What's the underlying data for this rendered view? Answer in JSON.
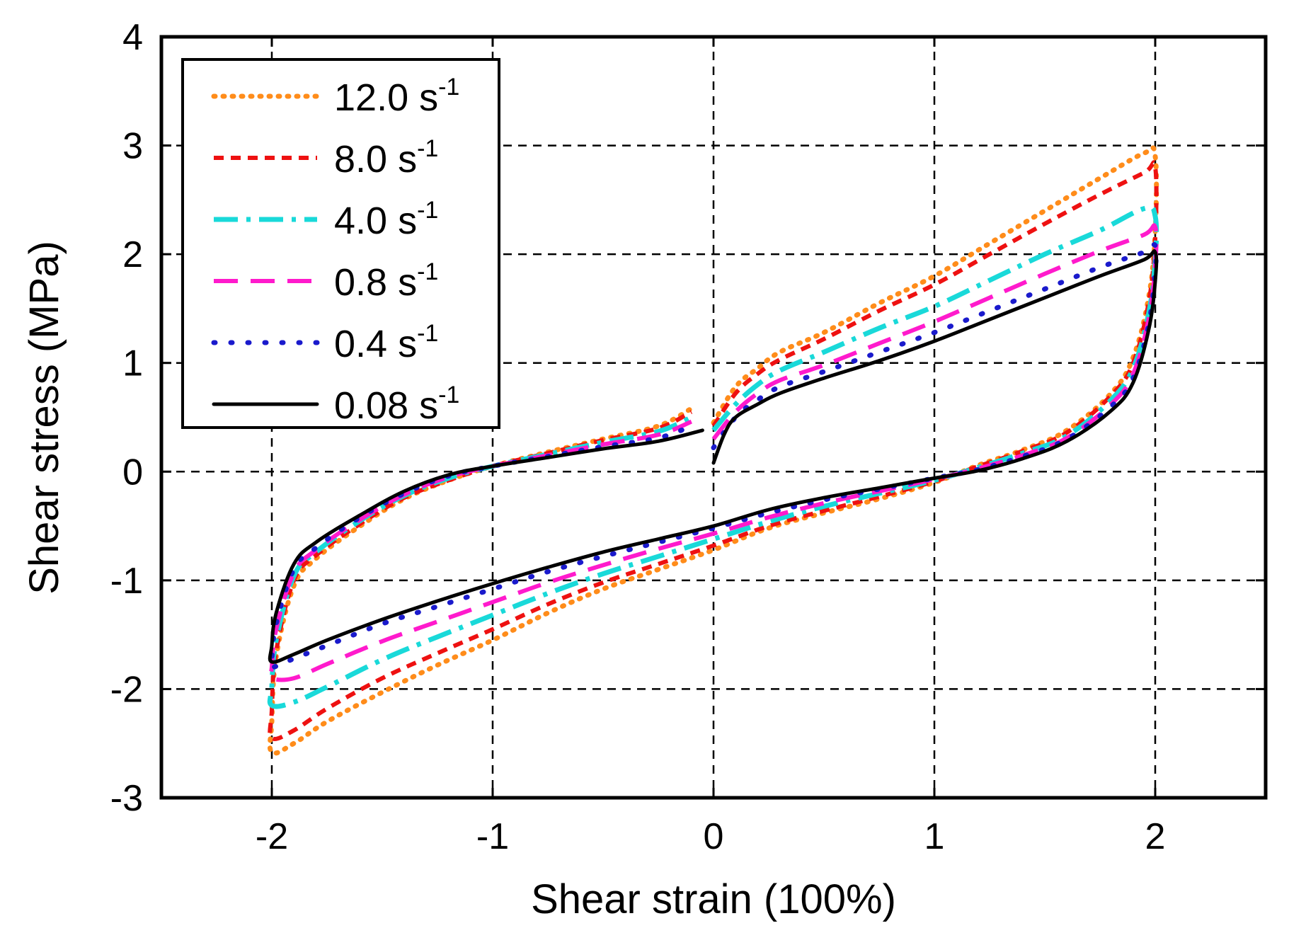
{
  "chart_data": {
    "type": "line",
    "title": "",
    "xlabel": "Shear strain (100%)",
    "ylabel": "Shear stress (MPa)",
    "xlim": [
      -2.5,
      2.5
    ],
    "ylim": [
      -3,
      4
    ],
    "xticks": [
      -2,
      -1,
      0,
      1,
      2
    ],
    "yticks": [
      -3,
      -2,
      -1,
      0,
      1,
      2,
      3,
      4
    ],
    "xtick_labels": [
      "-2",
      "-1",
      "0",
      "1",
      "2"
    ],
    "ytick_labels": [
      "-3",
      "-2",
      "-1",
      "0",
      "1",
      "2",
      "3",
      "4"
    ],
    "grid": true,
    "legend_position": "top-left",
    "series": [
      {
        "name": "12.0 s",
        "rate": "12.0",
        "unit": "s",
        "exponent": "-1",
        "color": "#FF8C1A",
        "style": "dotted",
        "x": [
          0.0,
          0.1,
          0.2,
          0.3,
          0.5,
          0.75,
          1.0,
          1.25,
          1.5,
          1.75,
          1.95,
          2.0,
          2.0,
          1.97,
          1.9,
          1.8,
          1.6,
          1.4,
          1.2,
          1.0,
          0.75,
          0.5,
          0.25,
          0.0,
          -0.25,
          -0.5,
          -0.75,
          -1.0,
          -1.25,
          -1.5,
          -1.75,
          -1.9,
          -2.0,
          -2.0,
          -1.98,
          -1.9,
          -1.8,
          -1.6,
          -1.4,
          -1.2,
          -1.0,
          -0.75,
          -0.5,
          -0.25,
          -0.1
        ],
        "y": [
          0.45,
          0.78,
          0.95,
          1.1,
          1.28,
          1.55,
          1.8,
          2.1,
          2.4,
          2.7,
          2.93,
          2.9,
          2.2,
          1.6,
          1.05,
          0.72,
          0.38,
          0.2,
          0.06,
          -0.1,
          -0.25,
          -0.38,
          -0.52,
          -0.72,
          -0.9,
          -1.08,
          -1.3,
          -1.55,
          -1.78,
          -2.03,
          -2.3,
          -2.5,
          -2.58,
          -2.3,
          -1.7,
          -1.05,
          -0.8,
          -0.5,
          -0.25,
          -0.08,
          0.05,
          0.18,
          0.3,
          0.42,
          0.58
        ]
      },
      {
        "name": "8.0 s",
        "rate": "8.0",
        "unit": "s",
        "exponent": "-1",
        "color": "#EE1111",
        "style": "short-dash",
        "x": [
          0.0,
          0.1,
          0.2,
          0.3,
          0.5,
          0.75,
          1.0,
          1.25,
          1.5,
          1.75,
          1.95,
          2.0,
          2.0,
          1.97,
          1.9,
          1.8,
          1.6,
          1.4,
          1.2,
          1.0,
          0.75,
          0.5,
          0.25,
          0.0,
          -0.25,
          -0.5,
          -0.75,
          -1.0,
          -1.25,
          -1.5,
          -1.75,
          -1.9,
          -2.0,
          -2.0,
          -1.98,
          -1.9,
          -1.8,
          -1.6,
          -1.4,
          -1.2,
          -1.0,
          -0.75,
          -0.5,
          -0.25,
          -0.1
        ],
        "y": [
          0.42,
          0.72,
          0.9,
          1.03,
          1.22,
          1.48,
          1.72,
          2.0,
          2.28,
          2.55,
          2.75,
          2.8,
          2.15,
          1.55,
          1.0,
          0.7,
          0.36,
          0.19,
          0.05,
          -0.09,
          -0.23,
          -0.36,
          -0.5,
          -0.68,
          -0.85,
          -1.02,
          -1.22,
          -1.45,
          -1.67,
          -1.9,
          -2.18,
          -2.38,
          -2.45,
          -2.2,
          -1.65,
          -1.0,
          -0.77,
          -0.48,
          -0.24,
          -0.08,
          0.05,
          0.17,
          0.29,
          0.4,
          0.55
        ]
      },
      {
        "name": "4.0 s",
        "rate": "4.0",
        "unit": "s",
        "exponent": "-1",
        "color": "#19D9D9",
        "style": "dash-dot",
        "x": [
          0.0,
          0.1,
          0.2,
          0.3,
          0.5,
          0.75,
          1.0,
          1.25,
          1.5,
          1.75,
          1.95,
          2.0,
          2.0,
          1.97,
          1.9,
          1.8,
          1.6,
          1.4,
          1.2,
          1.0,
          0.75,
          0.5,
          0.25,
          0.0,
          -0.25,
          -0.5,
          -0.75,
          -1.0,
          -1.25,
          -1.5,
          -1.75,
          -1.9,
          -2.0,
          -2.0,
          -1.98,
          -1.9,
          -1.8,
          -1.6,
          -1.4,
          -1.2,
          -1.0,
          -0.75,
          -0.5,
          -0.25,
          -0.1
        ],
        "y": [
          0.38,
          0.62,
          0.8,
          0.93,
          1.1,
          1.32,
          1.52,
          1.76,
          2.0,
          2.22,
          2.42,
          2.35,
          1.95,
          1.45,
          0.95,
          0.66,
          0.33,
          0.17,
          0.04,
          -0.08,
          -0.2,
          -0.32,
          -0.46,
          -0.62,
          -0.78,
          -0.94,
          -1.12,
          -1.32,
          -1.52,
          -1.73,
          -1.98,
          -2.12,
          -2.15,
          -1.98,
          -1.55,
          -0.96,
          -0.74,
          -0.45,
          -0.22,
          -0.06,
          0.05,
          0.16,
          0.27,
          0.37,
          0.5
        ]
      },
      {
        "name": "0.8 s",
        "rate": "0.8",
        "unit": "s",
        "exponent": "-1",
        "color": "#FF1ACC",
        "style": "long-dash",
        "x": [
          0.0,
          0.1,
          0.2,
          0.3,
          0.5,
          0.75,
          1.0,
          1.25,
          1.5,
          1.75,
          1.95,
          2.0,
          2.0,
          1.97,
          1.9,
          1.8,
          1.6,
          1.4,
          1.2,
          1.0,
          0.75,
          0.5,
          0.25,
          0.0,
          -0.25,
          -0.5,
          -0.75,
          -1.0,
          -1.25,
          -1.5,
          -1.75,
          -1.9,
          -2.0,
          -2.0,
          -1.98,
          -1.9,
          -1.8,
          -1.6,
          -1.4,
          -1.2,
          -1.0,
          -0.75,
          -0.5,
          -0.25,
          -0.1
        ],
        "y": [
          0.3,
          0.55,
          0.72,
          0.84,
          0.98,
          1.18,
          1.38,
          1.6,
          1.82,
          2.03,
          2.18,
          2.25,
          1.9,
          1.4,
          0.9,
          0.62,
          0.31,
          0.15,
          0.03,
          -0.07,
          -0.18,
          -0.29,
          -0.42,
          -0.57,
          -0.71,
          -0.86,
          -1.02,
          -1.2,
          -1.38,
          -1.56,
          -1.77,
          -1.9,
          -1.9,
          -1.8,
          -1.45,
          -0.93,
          -0.72,
          -0.44,
          -0.21,
          -0.05,
          0.05,
          0.15,
          0.25,
          0.34,
          0.46
        ]
      },
      {
        "name": "0.4 s",
        "rate": "0.4",
        "unit": "s",
        "exponent": "-1",
        "color": "#1A1ACC",
        "style": "sparse-dot",
        "x": [
          0.0,
          0.1,
          0.2,
          0.3,
          0.5,
          0.75,
          1.0,
          1.25,
          1.5,
          1.75,
          1.95,
          2.0,
          2.0,
          1.97,
          1.9,
          1.8,
          1.6,
          1.4,
          1.2,
          1.0,
          0.75,
          0.5,
          0.25,
          0.0,
          -0.25,
          -0.5,
          -0.75,
          -1.0,
          -1.25,
          -1.5,
          -1.75,
          -1.9,
          -2.0,
          -2.0,
          -1.98,
          -1.9,
          -1.8,
          -1.6,
          -1.4,
          -1.2,
          -1.0,
          -0.75,
          -0.5,
          -0.25,
          -0.1
        ],
        "y": [
          0.22,
          0.5,
          0.66,
          0.78,
          0.92,
          1.1,
          1.28,
          1.48,
          1.68,
          1.88,
          2.02,
          2.08,
          1.85,
          1.35,
          0.86,
          0.6,
          0.3,
          0.14,
          0.02,
          -0.06,
          -0.16,
          -0.26,
          -0.38,
          -0.52,
          -0.65,
          -0.78,
          -0.92,
          -1.08,
          -1.24,
          -1.4,
          -1.6,
          -1.72,
          -1.8,
          -1.72,
          -1.4,
          -0.9,
          -0.7,
          -0.42,
          -0.2,
          -0.04,
          0.05,
          0.14,
          0.23,
          0.31,
          0.42
        ]
      },
      {
        "name": "0.08 s",
        "rate": "0.08",
        "unit": "s",
        "exponent": "-1",
        "color": "#000000",
        "style": "solid",
        "x": [
          0.0,
          0.05,
          0.1,
          0.2,
          0.3,
          0.5,
          0.75,
          1.0,
          1.25,
          1.5,
          1.75,
          1.95,
          2.0,
          2.0,
          1.97,
          1.9,
          1.8,
          1.6,
          1.4,
          1.2,
          1.0,
          0.75,
          0.5,
          0.25,
          0.0,
          -0.25,
          -0.5,
          -0.75,
          -1.0,
          -1.25,
          -1.5,
          -1.75,
          -1.9,
          -2.0,
          -2.0,
          -1.98,
          -1.9,
          -1.8,
          -1.6,
          -1.4,
          -1.2,
          -1.0,
          -0.75,
          -0.5,
          -0.25,
          -0.05
        ],
        "y": [
          0.08,
          0.35,
          0.5,
          0.62,
          0.72,
          0.86,
          1.02,
          1.2,
          1.4,
          1.6,
          1.8,
          1.95,
          2.02,
          1.75,
          1.3,
          0.82,
          0.56,
          0.28,
          0.12,
          0.01,
          -0.06,
          -0.15,
          -0.24,
          -0.35,
          -0.5,
          -0.62,
          -0.74,
          -0.88,
          -1.03,
          -1.19,
          -1.36,
          -1.55,
          -1.68,
          -1.75,
          -1.6,
          -1.3,
          -0.85,
          -0.65,
          -0.4,
          -0.18,
          -0.03,
          0.05,
          0.13,
          0.21,
          0.28,
          0.38
        ]
      }
    ]
  }
}
